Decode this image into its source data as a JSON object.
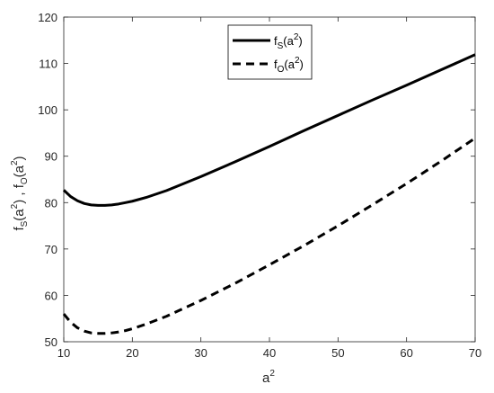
{
  "chart_data": {
    "type": "line",
    "xlabel": {
      "base": "a",
      "sup": "2"
    },
    "ylabel": {
      "text": "f_S(a^2) , f_O(a^2)"
    },
    "xlim": [
      10,
      70
    ],
    "ylim": [
      50,
      120
    ],
    "xticks": [
      10,
      20,
      30,
      40,
      50,
      60,
      70
    ],
    "yticks": [
      50,
      60,
      70,
      80,
      90,
      100,
      110,
      120
    ],
    "grid": false,
    "legend_position": "top-center",
    "series": [
      {
        "name": "f_S(a^2)",
        "label": {
          "f": "f",
          "sub": "S",
          "arg_open": "(a",
          "sup": "2",
          "arg_close": ")"
        },
        "style": "solid",
        "color": "#000000",
        "x": [
          10,
          11,
          12,
          13,
          14,
          15,
          16,
          17,
          18,
          19,
          20,
          22,
          25,
          30,
          35,
          40,
          45,
          50,
          55,
          60,
          65,
          70
        ],
        "y": [
          82.7,
          81.3,
          80.4,
          79.8,
          79.5,
          79.4,
          79.4,
          79.5,
          79.7,
          80.0,
          80.3,
          81.1,
          82.6,
          85.6,
          88.8,
          92.1,
          95.5,
          98.8,
          102.1,
          105.3,
          108.6,
          111.9
        ]
      },
      {
        "name": "f_O(a^2)",
        "label": {
          "f": "f",
          "sub": "O",
          "arg_open": "(a",
          "sup": "2",
          "arg_close": ")"
        },
        "style": "dashed",
        "color": "#000000",
        "x": [
          10,
          11,
          12,
          13,
          14,
          15,
          16,
          17,
          18,
          19,
          20,
          22,
          25,
          30,
          35,
          40,
          45,
          50,
          55,
          60,
          65,
          70
        ],
        "y": [
          56.0,
          54.2,
          53.0,
          52.3,
          51.9,
          51.8,
          51.8,
          51.9,
          52.1,
          52.4,
          52.8,
          53.8,
          55.5,
          58.9,
          62.6,
          66.6,
          70.7,
          75.0,
          79.5,
          84.1,
          88.9,
          93.9
        ]
      }
    ]
  }
}
